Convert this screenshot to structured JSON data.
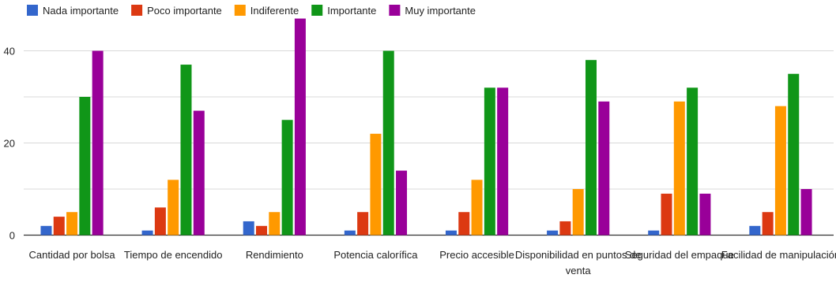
{
  "chart_data": {
    "type": "bar",
    "title": "",
    "xlabel": "",
    "ylabel": "",
    "ylim": [
      0,
      47
    ],
    "yticks": [
      0,
      20,
      40
    ],
    "grid": true,
    "legend_position": "top-left",
    "categories": [
      "Cantidad por bolsa",
      "Tiempo de encendido",
      "Rendimiento",
      "Potencia calorífica",
      "Precio accesible",
      "Disponibilidad en puntos de venta",
      "Seguridad del empaque",
      "Facilidad de manipulación"
    ],
    "category_lines": [
      [
        "Cantidad por bolsa"
      ],
      [
        "Tiempo de encendido"
      ],
      [
        "Rendimiento"
      ],
      [
        "Potencia calorífica"
      ],
      [
        "Precio accesible"
      ],
      [
        "Disponibilidad en puntos de",
        "venta"
      ],
      [
        "Seguridad del empaque"
      ],
      [
        "Facilidad de manipulación"
      ]
    ],
    "series": [
      {
        "name": "Nada importante",
        "color": "#3366cc",
        "values": [
          2,
          1,
          3,
          1,
          1,
          1,
          1,
          2
        ]
      },
      {
        "name": "Poco importante",
        "color": "#dc3912",
        "values": [
          4,
          6,
          2,
          5,
          5,
          3,
          9,
          5
        ]
      },
      {
        "name": "Indiferente",
        "color": "#ff9900",
        "values": [
          5,
          12,
          5,
          22,
          12,
          10,
          29,
          28
        ]
      },
      {
        "name": "Importante",
        "color": "#109618",
        "values": [
          30,
          37,
          25,
          40,
          32,
          38,
          32,
          35
        ]
      },
      {
        "name": "Muy importante",
        "color": "#990099",
        "values": [
          40,
          27,
          47,
          14,
          32,
          29,
          9,
          10
        ]
      }
    ]
  }
}
